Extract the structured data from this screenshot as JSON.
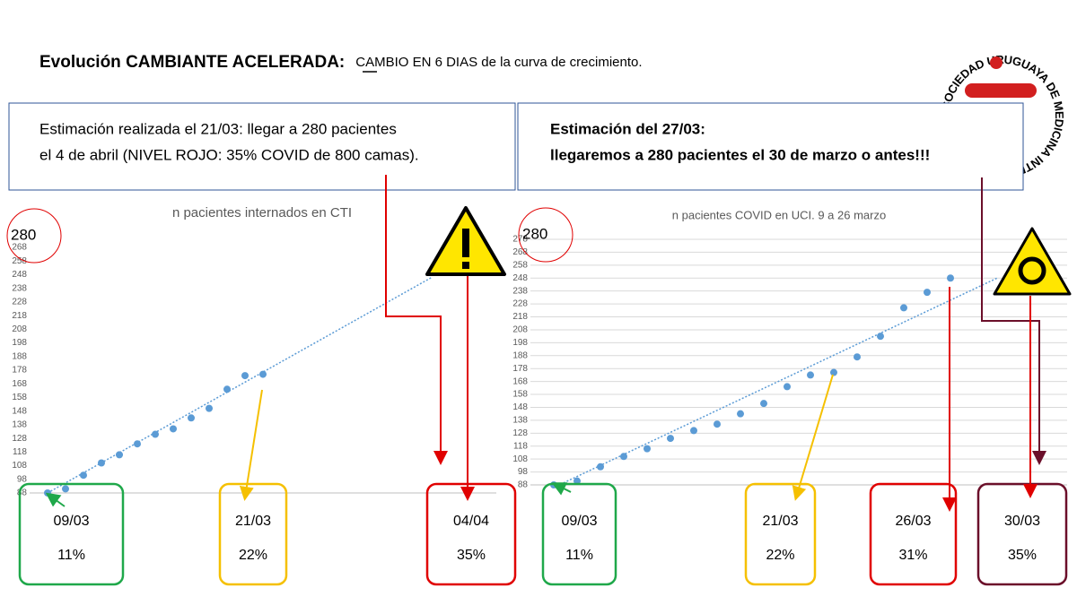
{
  "header": {
    "title_bold": "Evolución CAMBIANTE ACELERADA:",
    "title_rest": "CAMBIO  EN 6 DIAS de la curva de crecimiento."
  },
  "logo": {
    "text": "SOCIEDAD URUGUAYA DE MEDICINA INTENSIVA"
  },
  "notes": [
    {
      "lines": [
        "Estimación realizada el 21/03:  llegar a 280 pacientes",
        "el 4 de abril (NIVEL ROJO: 35% COVID de 800 camas)."
      ]
    },
    {
      "lines": [
        "Estimación del 27/03:",
        "llegaremos a 280 pacientes el 30 de marzo o antes!!!"
      ]
    }
  ],
  "chart_data": [
    {
      "type": "scatter",
      "title": "n pacientes internados en CTI",
      "target_label": "280",
      "x": [
        1,
        2,
        3,
        4,
        5,
        6,
        7,
        8,
        9,
        10,
        11,
        12,
        13
      ],
      "values": [
        88,
        91,
        101,
        110,
        116,
        124,
        131,
        135,
        143,
        150,
        164,
        174,
        175
      ],
      "color": "#5b9bd5",
      "trend": {
        "x": [
          1,
          22.4
        ],
        "values": [
          88,
          246
        ]
      },
      "xlim": [
        0,
        26
      ],
      "ylim": [
        88,
        268
      ],
      "yticks": [
        88,
        98,
        108,
        118,
        128,
        138,
        148,
        158,
        168,
        178,
        188,
        198,
        208,
        218,
        228,
        238,
        248,
        258,
        268
      ],
      "grid": false,
      "callouts": [
        {
          "date": "09/03",
          "pct": "11%",
          "color": "#1fa84a"
        },
        {
          "date": "21/03",
          "pct": "22%",
          "color": "#f5c000"
        },
        {
          "date": "04/04",
          "pct": "35%",
          "color": "#e00000"
        }
      ]
    },
    {
      "type": "scatter",
      "title": "n pacientes COVID en UCI.  9 a 26 marzo",
      "target_label": "280",
      "x": [
        1,
        2,
        3,
        4,
        5,
        6,
        7,
        8,
        9,
        10,
        11,
        12,
        13,
        14,
        15,
        16,
        17,
        18
      ],
      "values": [
        88,
        91,
        102,
        110,
        116,
        124,
        130,
        135,
        143,
        151,
        164,
        173,
        175,
        187,
        203,
        225,
        237,
        248
      ],
      "color": "#5b9bd5",
      "trend": {
        "x": [
          1,
          20
        ],
        "values": [
          86,
          248
        ]
      },
      "xlim": [
        0,
        23
      ],
      "ylim": [
        88,
        278
      ],
      "yticks": [
        88,
        98,
        108,
        118,
        128,
        138,
        148,
        158,
        168,
        178,
        188,
        198,
        208,
        218,
        228,
        238,
        248,
        258,
        268,
        278
      ],
      "grid": true,
      "callouts": [
        {
          "date": "09/03",
          "pct": "11%",
          "color": "#1fa84a"
        },
        {
          "date": "21/03",
          "pct": "22%",
          "color": "#f5c000"
        },
        {
          "date": "26/03",
          "pct": "31%",
          "color": "#e00000"
        },
        {
          "date": "30/03",
          "pct": "35%",
          "color": "#6b0f2a"
        }
      ]
    }
  ]
}
